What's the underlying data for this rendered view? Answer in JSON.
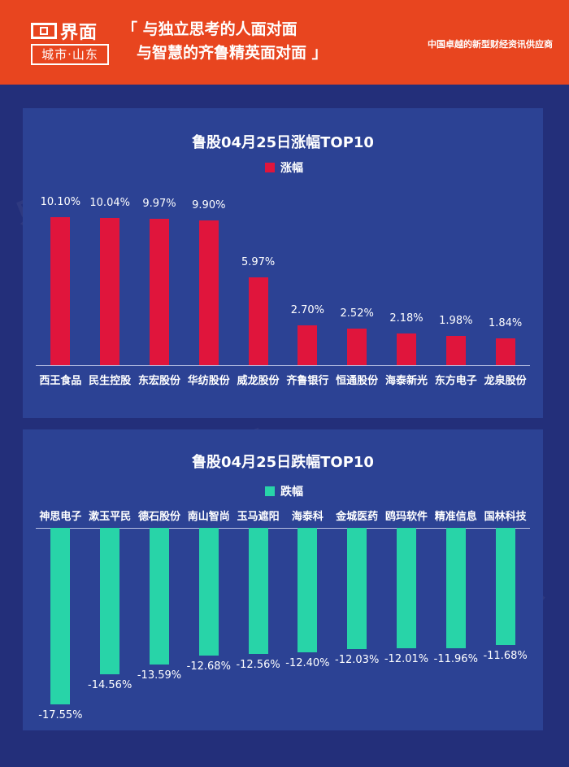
{
  "header": {
    "logo_name": "界面",
    "logo_sub": "城市·山东",
    "slogan_line1": "「 与独立思考的人面对面",
    "slogan_line2": "与智慧的齐鲁精英面对面 」",
    "tagline": "中国卓越的新型财经资讯供应商"
  },
  "watermark_text": "界面 城市·山东",
  "colors": {
    "header_bg": "#e8451f",
    "page_bg": "#232f7a",
    "panel_bg": "#2c4294",
    "rise_bar": "#e0153c",
    "fall_bar": "#28d4a8"
  },
  "chart_data": [
    {
      "type": "bar",
      "title": "鲁股04月25日涨幅TOP10",
      "legend": "涨幅",
      "categories": [
        "西王食品",
        "民生控股",
        "东宏股份",
        "华纺股份",
        "威龙股份",
        "齐鲁银行",
        "恒通股份",
        "海泰新光",
        "东方电子",
        "龙泉股份"
      ],
      "values": [
        10.1,
        10.04,
        9.97,
        9.9,
        5.97,
        2.7,
        2.52,
        2.18,
        1.98,
        1.84
      ],
      "labels": [
        "10.10%",
        "10.04%",
        "9.97%",
        "9.90%",
        "5.97%",
        "2.70%",
        "2.52%",
        "2.18%",
        "1.98%",
        "1.84%"
      ],
      "ylim": [
        0,
        10.1
      ]
    },
    {
      "type": "bar",
      "title": "鲁股04月25日跌幅TOP10",
      "legend": "跌幅",
      "categories": [
        "神思电子",
        "漱玉平民",
        "德石股份",
        "南山智尚",
        "玉马遮阳",
        "海泰科",
        "金城医药",
        "鸥玛软件",
        "精准信息",
        "国林科技"
      ],
      "values": [
        -17.55,
        -14.56,
        -13.59,
        -12.68,
        -12.56,
        -12.4,
        -12.03,
        -12.01,
        -11.96,
        -11.68
      ],
      "labels": [
        "-17.55%",
        "-14.56%",
        "-13.59%",
        "-12.68%",
        "-12.56%",
        "-12.40%",
        "-12.03%",
        "-12.01%",
        "-11.96%",
        "-11.68%"
      ],
      "ylim": [
        -17.55,
        0
      ]
    }
  ]
}
